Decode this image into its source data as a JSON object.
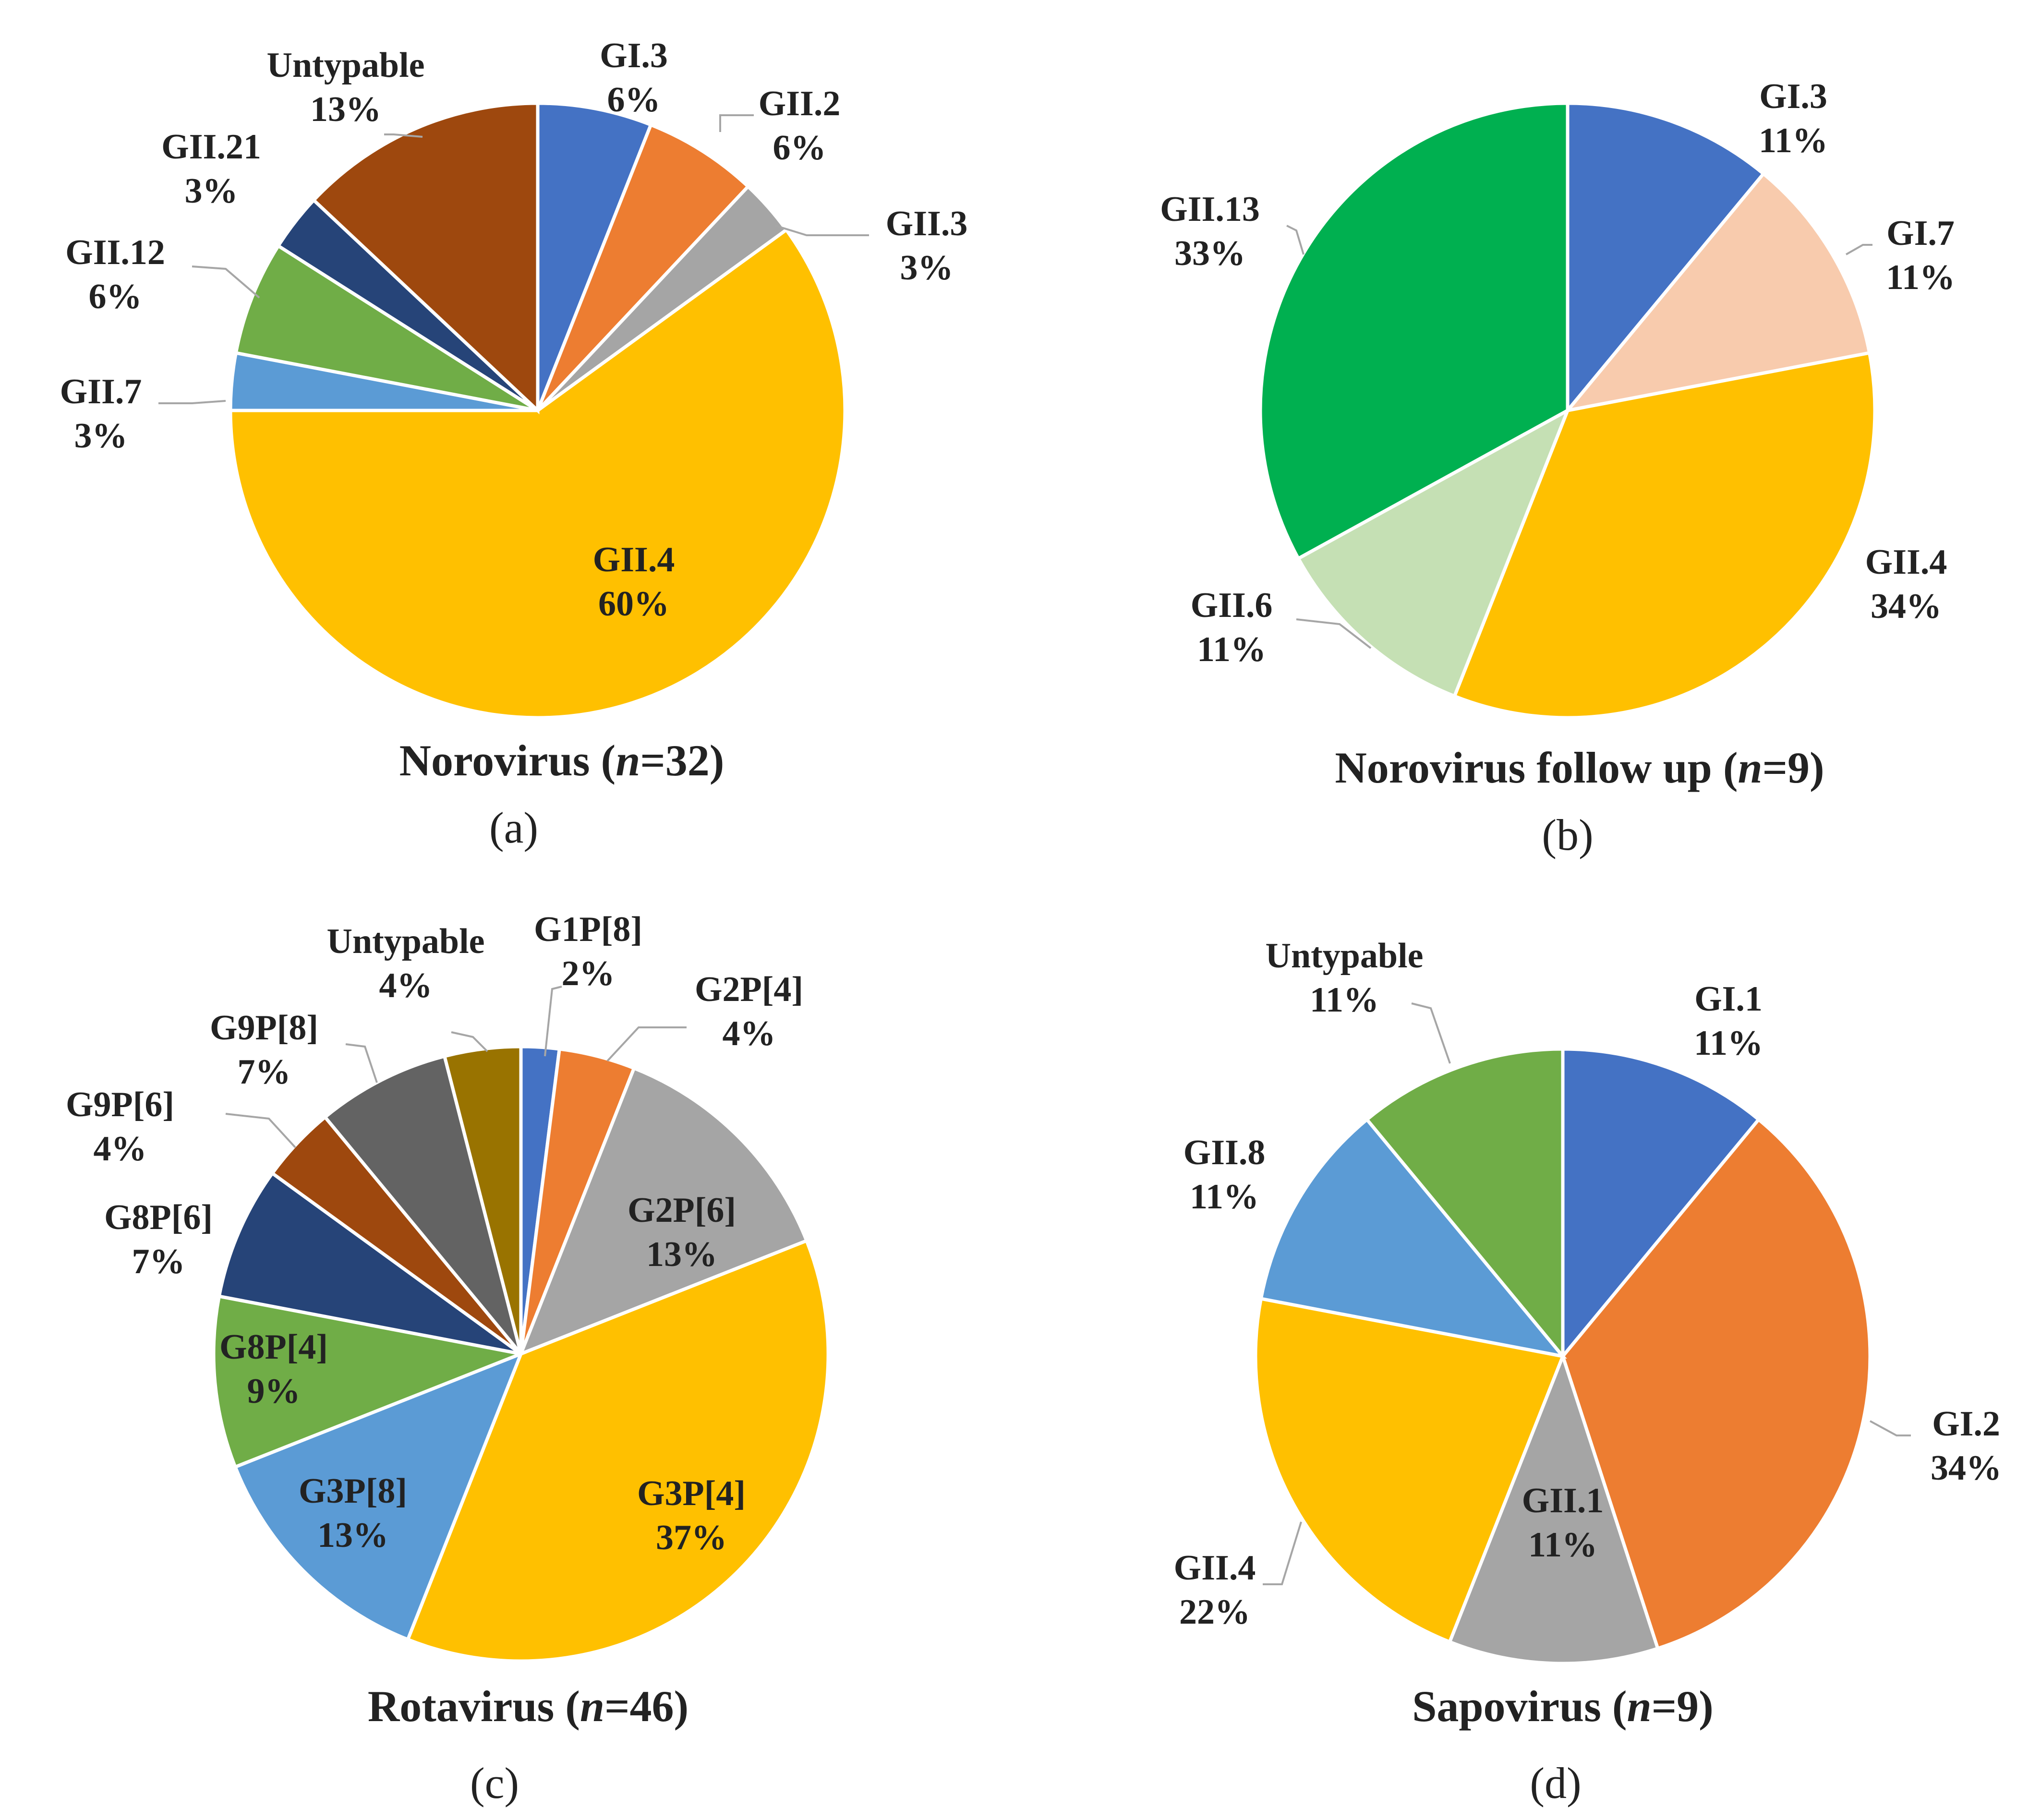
{
  "chart_data": [
    {
      "type": "pie",
      "panel_label": "(a)",
      "title_prefix": "Norovirus (",
      "title_n_symbol": "n",
      "title_suffix": "=32)",
      "start": "12 o'clock, clockwise",
      "slices": [
        {
          "name": "GI.3",
          "value": 6,
          "pct": "6%",
          "color": "#4472c4"
        },
        {
          "name": "GII.2",
          "value": 6,
          "pct": "6%",
          "color": "#ed7d31"
        },
        {
          "name": "GII.3",
          "value": 3,
          "pct": "3%",
          "color": "#a5a5a5"
        },
        {
          "name": "GII.4",
          "value": 60,
          "pct": "60%",
          "color": "#ffc000"
        },
        {
          "name": "GII.7",
          "value": 3,
          "pct": "3%",
          "color": "#5b9bd5"
        },
        {
          "name": "GII.12",
          "value": 6,
          "pct": "6%",
          "color": "#70ad47"
        },
        {
          "name": "GII.21",
          "value": 3,
          "pct": "3%",
          "color": "#264478"
        },
        {
          "name": "Untypable",
          "value": 13,
          "pct": "13%",
          "color": "#9e480e"
        }
      ]
    },
    {
      "type": "pie",
      "panel_label": "(b)",
      "title_prefix": "Norovirus follow up (",
      "title_n_symbol": "n",
      "title_suffix": "=9)",
      "start": "12 o'clock, clockwise",
      "slices": [
        {
          "name": "GI.3",
          "value": 11,
          "pct": "11%",
          "color": "#4472c4"
        },
        {
          "name": "GI.7",
          "value": 11,
          "pct": "11%",
          "color": "#f8cbad"
        },
        {
          "name": "GII.4",
          "value": 34,
          "pct": "34%",
          "color": "#ffc000"
        },
        {
          "name": "GII.6",
          "value": 11,
          "pct": "11%",
          "color": "#c5e0b4"
        },
        {
          "name": "GII.13",
          "value": 33,
          "pct": "33%",
          "color": "#00b050"
        }
      ]
    },
    {
      "type": "pie",
      "panel_label": "(c)",
      "title_prefix": "Rotavirus (",
      "title_n_symbol": "n",
      "title_suffix": "=46)",
      "start": "12 o'clock, clockwise",
      "slices": [
        {
          "name": "G1P[8]",
          "value": 2,
          "pct": "2%",
          "color": "#4472c4"
        },
        {
          "name": "G2P[4]",
          "value": 4,
          "pct": "4%",
          "color": "#ed7d31"
        },
        {
          "name": "G2P[6]",
          "value": 13,
          "pct": "13%",
          "color": "#a5a5a5"
        },
        {
          "name": "G3P[4]",
          "value": 37,
          "pct": "37%",
          "color": "#ffc000"
        },
        {
          "name": "G3P[8]",
          "value": 13,
          "pct": "13%",
          "color": "#5b9bd5"
        },
        {
          "name": "G8P[4]",
          "value": 9,
          "pct": "9%",
          "color": "#70ad47"
        },
        {
          "name": "G8P[6]",
          "value": 7,
          "pct": "7%",
          "color": "#264478"
        },
        {
          "name": "G9P[6]",
          "value": 4,
          "pct": "4%",
          "color": "#9e480e"
        },
        {
          "name": "G9P[8]",
          "value": 7,
          "pct": "7%",
          "color": "#636363"
        },
        {
          "name": "Untypable",
          "value": 4,
          "pct": "4%",
          "color": "#997300"
        }
      ]
    },
    {
      "type": "pie",
      "panel_label": "(d)",
      "title_prefix": "Sapovirus (",
      "title_n_symbol": "n",
      "title_suffix": "=9)",
      "start": "12 o'clock, clockwise",
      "slices": [
        {
          "name": "GI.1",
          "value": 11,
          "pct": "11%",
          "color": "#4472c4"
        },
        {
          "name": "GI.2",
          "value": 34,
          "pct": "34%",
          "color": "#ed7d31"
        },
        {
          "name": "GII.1",
          "value": 11,
          "pct": "11%",
          "color": "#a5a5a5"
        },
        {
          "name": "GII.4",
          "value": 22,
          "pct": "22%",
          "color": "#ffc000"
        },
        {
          "name": "GII.8",
          "value": 11,
          "pct": "11%",
          "color": "#5b9bd5"
        },
        {
          "name": "Untypable",
          "value": 11,
          "pct": "11%",
          "color": "#70ad47"
        }
      ]
    }
  ]
}
